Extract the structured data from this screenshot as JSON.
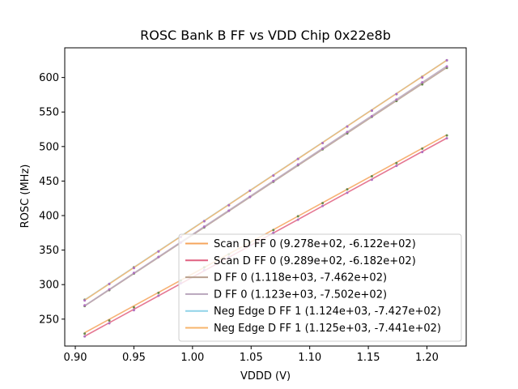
{
  "chart_data": {
    "type": "line",
    "title": "ROSC Bank B FF vs VDD Chip 0x22e8b",
    "xlabel": "VDDD (V)",
    "ylabel": "ROSC (MHz)",
    "xlim": [
      0.891,
      1.2335
    ],
    "ylim": [
      211,
      643
    ],
    "x_ticks": [
      0.9,
      0.95,
      1.0,
      1.05,
      1.1,
      1.15,
      1.2
    ],
    "x_tick_labels": [
      "0.90",
      "0.95",
      "1.00",
      "1.05",
      "1.10",
      "1.15",
      "1.20"
    ],
    "y_ticks": [
      250,
      300,
      350,
      400,
      450,
      500,
      550,
      600
    ],
    "y_tick_labels": [
      "250",
      "300",
      "350",
      "400",
      "450",
      "500",
      "550",
      "600"
    ],
    "grid": false,
    "legend_position": "lower-right",
    "series": [
      {
        "name": "Scan D FF 0 (9.278e+02, -6.122e+02)",
        "color": "#f5a55c",
        "fit": {
          "slope": 927.8,
          "intercept": -612.2
        },
        "x": [
          0.908,
          0.929,
          0.95,
          0.971,
          0.99,
          1.01,
          1.031,
          1.049,
          1.069,
          1.09,
          1.111,
          1.132,
          1.153,
          1.174,
          1.196,
          1.217
        ],
        "y": [
          229,
          248,
          267,
          288,
          306,
          325,
          344,
          361,
          379,
          399,
          418,
          438,
          457,
          476,
          497,
          516
        ]
      },
      {
        "name": "Scan D FF 0 (9.289e+02, -6.182e+02)",
        "color": "#e06080",
        "fit": {
          "slope": 928.9,
          "intercept": -618.2
        },
        "x": [
          0.908,
          0.929,
          0.95,
          0.971,
          0.99,
          1.01,
          1.031,
          1.049,
          1.069,
          1.09,
          1.111,
          1.132,
          1.153,
          1.174,
          1.196,
          1.217
        ],
        "y": [
          225,
          244,
          263,
          284,
          302,
          321,
          340,
          357,
          375,
          394,
          414,
          433,
          452,
          472,
          492,
          512
        ]
      },
      {
        "name": "D FF 0 (1.118e+03, -7.462e+02)",
        "color": "#b8a08e",
        "fit": {
          "slope": 1118,
          "intercept": -746.2
        },
        "x": [
          0.908,
          0.929,
          0.95,
          0.971,
          0.99,
          1.01,
          1.031,
          1.049,
          1.069,
          1.09,
          1.111,
          1.132,
          1.153,
          1.174,
          1.196,
          1.217
        ],
        "y": [
          269,
          292,
          316,
          340,
          361,
          383,
          407,
          427,
          449,
          473,
          496,
          519,
          543,
          566,
          590,
          614
        ]
      },
      {
        "name": "D FF 0 (1.123e+03, -7.502e+02)",
        "color": "#b8a6bc",
        "fit": {
          "slope": 1123,
          "intercept": -750.2
        },
        "x": [
          0.908,
          0.929,
          0.95,
          0.971,
          0.99,
          1.01,
          1.031,
          1.049,
          1.069,
          1.09,
          1.111,
          1.132,
          1.153,
          1.174,
          1.196,
          1.217
        ],
        "y": [
          270,
          293,
          317,
          340,
          361,
          384,
          407,
          427,
          450,
          474,
          497,
          521,
          544,
          568,
          593,
          616
        ]
      },
      {
        "name": "Neg Edge D FF 1 (1.124e+03, -7.427e+02)",
        "color": "#8fd3e8",
        "fit": {
          "slope": 1124,
          "intercept": -742.7
        },
        "x": [
          0.908,
          0.929,
          0.95,
          0.971,
          0.99,
          1.01,
          1.031,
          1.049,
          1.069,
          1.09,
          1.111,
          1.132,
          1.153,
          1.174,
          1.196,
          1.217
        ],
        "y": [
          278,
          301,
          325,
          348,
          369,
          392,
          415,
          436,
          458,
          482,
          505,
          529,
          552,
          576,
          601,
          625
        ]
      },
      {
        "name": "Neg Edge D FF 1 (1.125e+03, -7.441e+02)",
        "color": "#f7b56c",
        "fit": {
          "slope": 1125,
          "intercept": -744.1
        },
        "x": [
          0.908,
          0.929,
          0.95,
          0.971,
          0.99,
          1.01,
          1.031,
          1.049,
          1.069,
          1.09,
          1.111,
          1.132,
          1.153,
          1.174,
          1.196,
          1.217
        ],
        "y": [
          277,
          301,
          324,
          348,
          369,
          392,
          415,
          436,
          458,
          482,
          505,
          529,
          552,
          576,
          600,
          625
        ]
      }
    ]
  }
}
